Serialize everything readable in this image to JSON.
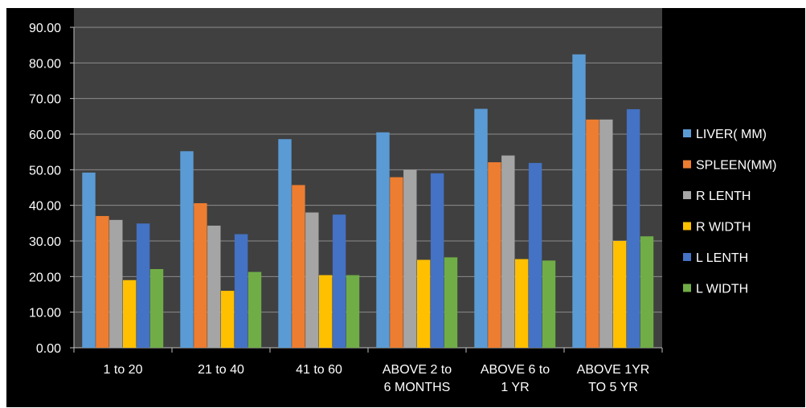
{
  "chart_data": {
    "type": "bar",
    "title": "",
    "xlabel": "",
    "ylabel": "",
    "ylim": [
      0,
      90
    ],
    "ytick_step": 10,
    "ytick_labels": [
      "0.00",
      "10.00",
      "20.00",
      "30.00",
      "40.00",
      "50.00",
      "60.00",
      "70.00",
      "80.00",
      "90.00"
    ],
    "grid": true,
    "legend_position": "right",
    "categories": [
      [
        "1 to 20"
      ],
      [
        "21 to 40"
      ],
      [
        "41 to 60"
      ],
      [
        "ABOVE  2 to",
        "6 MONTHS"
      ],
      [
        "ABOVE  6 to",
        "1 YR"
      ],
      [
        "ABOVE 1YR",
        "TO 5 YR"
      ]
    ],
    "series": [
      {
        "name": "LIVER( MM)",
        "color": "#5b9bd5",
        "values": [
          49.2,
          55.2,
          58.6,
          60.5,
          67.1,
          82.4
        ]
      },
      {
        "name": "SPLEEN(MM)",
        "color": "#ed7d31",
        "values": [
          37.0,
          40.6,
          45.7,
          47.9,
          52.1,
          64.1
        ]
      },
      {
        "name": "R LENTH",
        "color": "#a5a5a5",
        "values": [
          35.9,
          34.3,
          38.0,
          50.0,
          54.0,
          64.1
        ]
      },
      {
        "name": "R WIDTH",
        "color": "#ffc000",
        "values": [
          19.0,
          16.0,
          20.4,
          24.7,
          24.9,
          30.0
        ]
      },
      {
        "name": "L  LENTH",
        "color": "#4472c4",
        "values": [
          34.9,
          31.9,
          37.4,
          49.0,
          51.9,
          67.0
        ]
      },
      {
        "name": "L WIDTH",
        "color": "#70ad47",
        "values": [
          22.1,
          21.3,
          20.4,
          25.4,
          24.5,
          31.3
        ]
      }
    ]
  }
}
